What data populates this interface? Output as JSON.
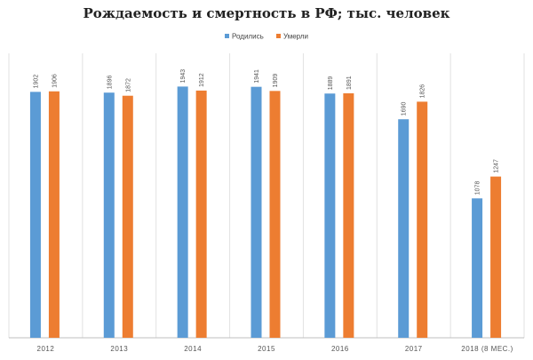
{
  "chart_data": {
    "type": "bar",
    "title": "Рождаемость и смертность в РФ; тыс. человек",
    "categories": [
      "2012",
      "2013",
      "2014",
      "2015",
      "2016",
      "2017",
      "2018 (8 МЕС.)"
    ],
    "series": [
      {
        "name": "Родились",
        "color": "#5b9bd5",
        "values": [
          1902,
          1896,
          1943,
          1941,
          1889,
          1690,
          1078
        ]
      },
      {
        "name": "Умерли",
        "color": "#ed7d31",
        "values": [
          1906,
          1872,
          1912,
          1909,
          1891,
          1826,
          1247
        ]
      }
    ],
    "ylim": [
      0,
      2200
    ],
    "grid": false,
    "legend_position": "top-center",
    "data_labels": true
  }
}
